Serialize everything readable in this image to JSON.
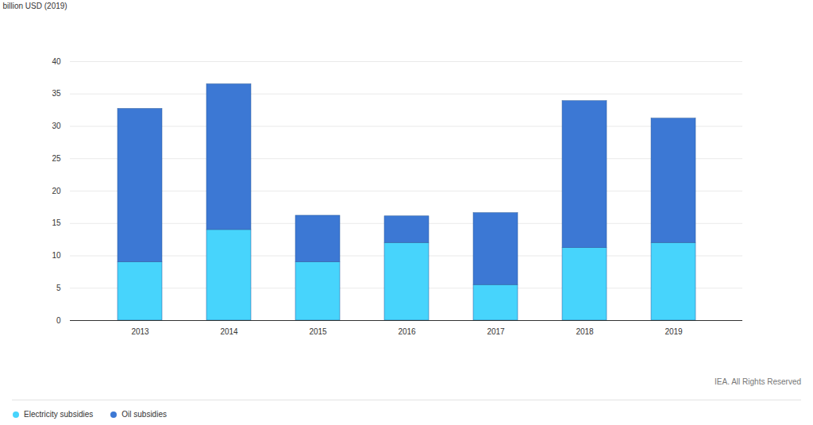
{
  "chart_data": {
    "type": "bar",
    "stacked": true,
    "ylabel": "billion USD (2019)",
    "caption": "IEA. All Rights Reserved",
    "categories": [
      "2013",
      "2014",
      "2015",
      "2016",
      "2017",
      "2018",
      "2019"
    ],
    "series": [
      {
        "name": "Electricity subsidies",
        "color": "#47d4fc",
        "values": [
          9,
          14,
          9,
          12,
          5.5,
          11.2,
          12
        ]
      },
      {
        "name": "Oil subsidies",
        "color": "#3c78d4",
        "values": [
          23.7,
          22.5,
          7.2,
          4.1,
          11.1,
          22.7,
          19.2
        ]
      }
    ],
    "ylim": [
      0,
      40
    ],
    "yticks": [
      0,
      5,
      10,
      15,
      20,
      25,
      30,
      35,
      40
    ],
    "grid": true,
    "legend": "bottom-left"
  }
}
